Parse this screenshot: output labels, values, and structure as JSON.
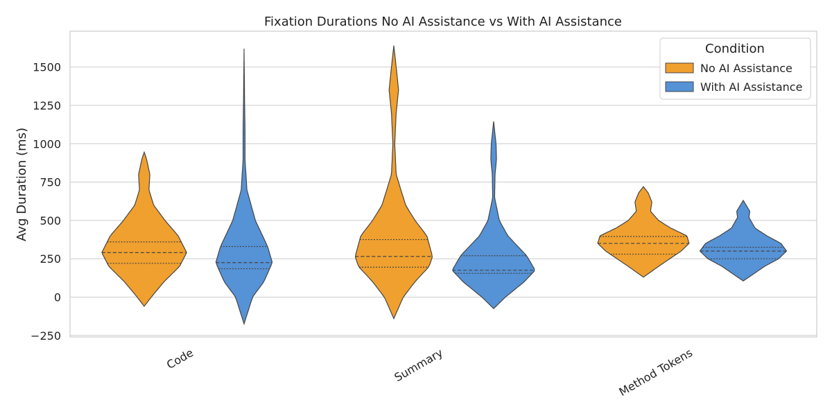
{
  "chart_data": {
    "type": "violin",
    "title": "Fixation Durations No AI Assistance vs With AI Assistance",
    "xlabel": "",
    "ylabel": "Avg Duration (ms)",
    "ylim": [
      -260,
      1750
    ],
    "yticks": [
      -250,
      0,
      250,
      500,
      750,
      1000,
      1250,
      1500
    ],
    "categories": [
      "Code",
      "Summary",
      "Method Tokens"
    ],
    "grid": true,
    "legend": {
      "title": "Condition",
      "placement": "top-right"
    },
    "series": [
      {
        "name": "No AI Assistance",
        "color": "#F0A02E",
        "violins": [
          {
            "min": -60,
            "max": 945,
            "q1": 220,
            "median": 290,
            "q3": 360,
            "profile": [
              [
                -60,
                0.0
              ],
              [
                0,
                0.15
              ],
              [
                100,
                0.42
              ],
              [
                200,
                0.75
              ],
              [
                290,
                0.9
              ],
              [
                400,
                0.72
              ],
              [
                500,
                0.44
              ],
              [
                600,
                0.2
              ],
              [
                700,
                0.1
              ],
              [
                800,
                0.12
              ],
              [
                900,
                0.05
              ],
              [
                945,
                0.0
              ]
            ]
          },
          {
            "min": -140,
            "max": 1640,
            "q1": 195,
            "median": 265,
            "q3": 375,
            "profile": [
              [
                -140,
                0.0
              ],
              [
                0,
                0.2
              ],
              [
                100,
                0.45
              ],
              [
                200,
                0.75
              ],
              [
                265,
                0.82
              ],
              [
                400,
                0.7
              ],
              [
                500,
                0.45
              ],
              [
                600,
                0.25
              ],
              [
                800,
                0.05
              ],
              [
                1000,
                0.02
              ],
              [
                1200,
                0.05
              ],
              [
                1350,
                0.1
              ],
              [
                1500,
                0.05
              ],
              [
                1640,
                0.0
              ]
            ]
          },
          {
            "min": 130,
            "max": 720,
            "q1": 280,
            "median": 350,
            "q3": 395,
            "profile": [
              [
                130,
                0.0
              ],
              [
                200,
                0.32
              ],
              [
                300,
                0.8
              ],
              [
                350,
                0.97
              ],
              [
                400,
                0.92
              ],
              [
                450,
                0.58
              ],
              [
                500,
                0.32
              ],
              [
                560,
                0.15
              ],
              [
                620,
                0.18
              ],
              [
                680,
                0.1
              ],
              [
                720,
                0.0
              ]
            ]
          }
        ]
      },
      {
        "name": "With AI Assistance",
        "color": "#5592D6",
        "violins": [
          {
            "min": -175,
            "max": 1620,
            "q1": 185,
            "median": 225,
            "q3": 330,
            "profile": [
              [
                -175,
                0.0
              ],
              [
                0,
                0.18
              ],
              [
                100,
                0.42
              ],
              [
                225,
                0.6
              ],
              [
                330,
                0.5
              ],
              [
                500,
                0.24
              ],
              [
                700,
                0.06
              ],
              [
                900,
                0.02
              ],
              [
                1100,
                0.02
              ],
              [
                1300,
                0.01
              ],
              [
                1620,
                0.0
              ]
            ]
          },
          {
            "min": -75,
            "max": 1145,
            "q1": 155,
            "median": 175,
            "q3": 270,
            "profile": [
              [
                -75,
                0.0
              ],
              [
                0,
                0.25
              ],
              [
                100,
                0.65
              ],
              [
                175,
                0.88
              ],
              [
                270,
                0.7
              ],
              [
                400,
                0.3
              ],
              [
                500,
                0.12
              ],
              [
                650,
                0.02
              ],
              [
                800,
                0.03
              ],
              [
                900,
                0.06
              ],
              [
                1000,
                0.05
              ],
              [
                1145,
                0.0
              ]
            ]
          },
          {
            "min": 105,
            "max": 630,
            "q1": 250,
            "median": 300,
            "q3": 325,
            "profile": [
              [
                105,
                0.0
              ],
              [
                200,
                0.45
              ],
              [
                250,
                0.75
              ],
              [
                300,
                0.92
              ],
              [
                350,
                0.8
              ],
              [
                400,
                0.5
              ],
              [
                450,
                0.25
              ],
              [
                520,
                0.12
              ],
              [
                560,
                0.14
              ],
              [
                630,
                0.0
              ]
            ]
          }
        ]
      }
    ]
  }
}
